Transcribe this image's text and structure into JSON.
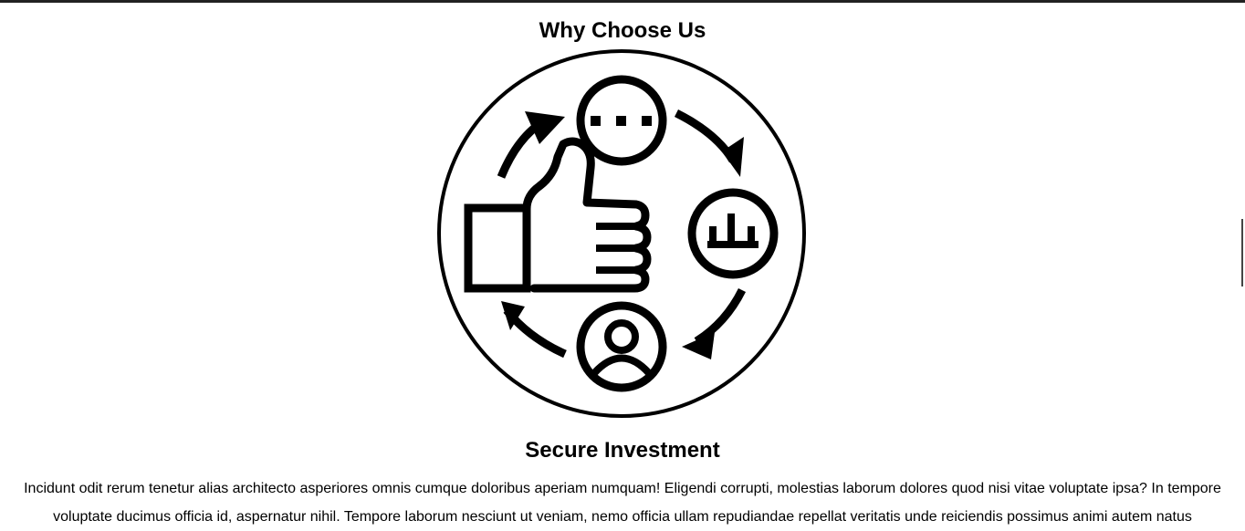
{
  "section": {
    "title": "Why Choose Us"
  },
  "feature": {
    "icon": "thumbs-up-cycle-icon",
    "title": "Secure Investment",
    "description": "Incidunt odit rerum tenetur alias architecto asperiores omnis cumque doloribus aperiam numquam! Eligendi corrupti, molestias laborum dolores quod nisi vitae voluptate ipsa? In tempore voluptate ducimus officia id, aspernatur nihil. Tempore laborum nesciunt ut veniam, nemo officia ullam repudiandae repellat veritatis unde reiciendis possimus animi autem natus"
  },
  "colors": {
    "text": "#000000",
    "background": "#ffffff"
  }
}
